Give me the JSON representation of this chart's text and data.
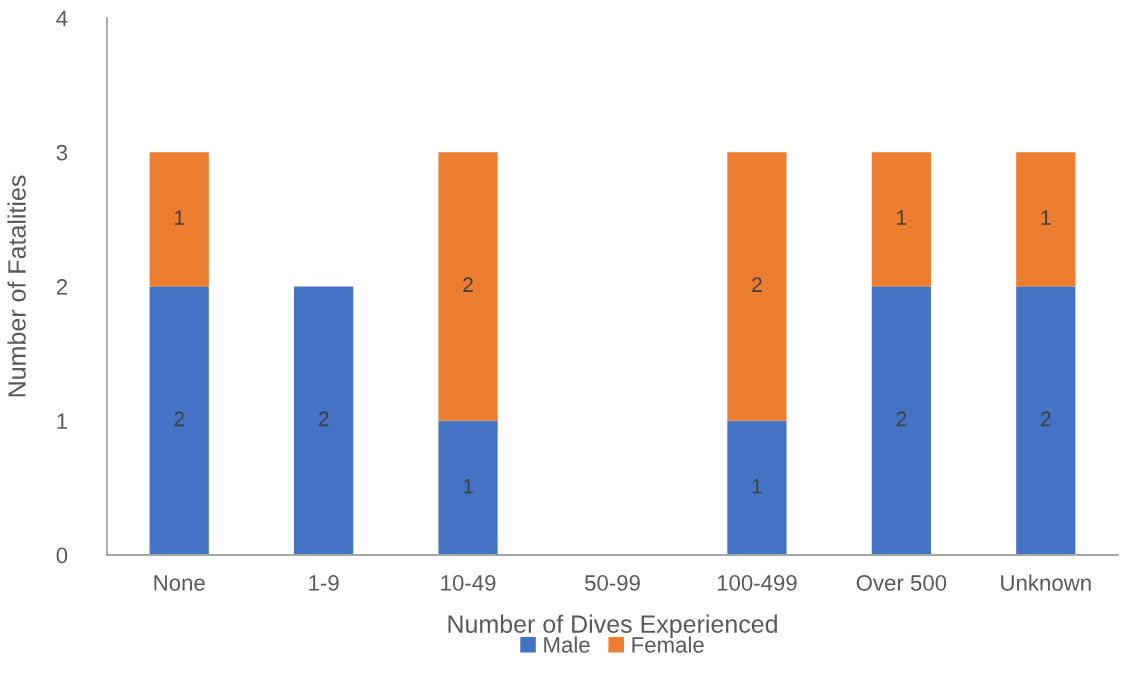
{
  "chart_data": {
    "type": "bar",
    "stacked": true,
    "categories": [
      "None",
      "1-9",
      "10-49",
      "50-99",
      "100-499",
      "Over 500",
      "Unknown"
    ],
    "series": [
      {
        "name": "Male",
        "color": "#4472c4",
        "values": [
          2,
          2,
          1,
          null,
          1,
          2,
          2
        ]
      },
      {
        "name": "Female",
        "color": "#ed7d31",
        "values": [
          1,
          null,
          2,
          null,
          2,
          1,
          1
        ]
      }
    ],
    "xlabel": "Number of Dives Experienced",
    "ylabel": "Number of Fatalities",
    "ylim": [
      0,
      4
    ],
    "yticks": [
      0,
      1,
      2,
      3,
      4
    ],
    "grid": false,
    "legend": "bottom",
    "data_labels": true
  }
}
